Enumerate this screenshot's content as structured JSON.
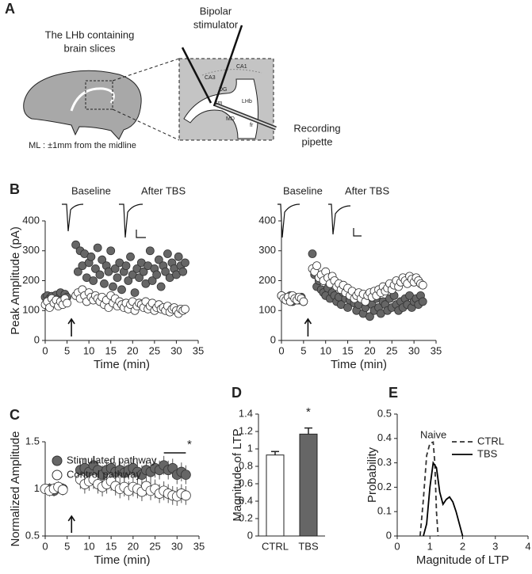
{
  "diagram": {
    "panel": "A",
    "slice_label": [
      "The LHb containing",
      "brain slices"
    ],
    "stimulator_label": [
      "Bipolar",
      "stimulator"
    ],
    "pipette_label": [
      "Recording",
      "pipette"
    ],
    "ml_note": "ML : ±1mm from the midline",
    "regions": [
      "CA3",
      "CA1",
      "DG",
      "sm",
      "LHb",
      "MD",
      "fr"
    ]
  },
  "chart_data": [
    {
      "type": "scatter",
      "panel": "B",
      "ylabel": "Peak Amplitude (pA)",
      "xlabel": "Time (min)",
      "annotations": [
        "Baseline",
        "After TBS"
      ],
      "stimulus_at": 6,
      "xlim": [
        0,
        35
      ],
      "xticks": [
        0,
        5,
        10,
        15,
        20,
        25,
        30,
        35
      ],
      "ylim": [
        0,
        400
      ],
      "yticks": [
        0,
        100,
        200,
        300,
        400
      ],
      "x": [
        0,
        0.5,
        1,
        1.5,
        2,
        2.5,
        3,
        3.5,
        4,
        4.5,
        5,
        7,
        7.5,
        8,
        8.5,
        9,
        9.5,
        10,
        10.5,
        11,
        11.5,
        12,
        12.5,
        13,
        13.5,
        14,
        14.5,
        15,
        15.5,
        16,
        16.5,
        17,
        17.5,
        18,
        18.5,
        19,
        19.5,
        20,
        20.5,
        21,
        21.5,
        22,
        22.5,
        23,
        23.5,
        24,
        24.5,
        25,
        25.5,
        26,
        26.5,
        27,
        27.5,
        28,
        28.5,
        29,
        29.5,
        30,
        30.5,
        31,
        31.5,
        32
      ],
      "series": [
        {
          "color": "#666666",
          "values": [
            145,
            150,
            140,
            148,
            135,
            152,
            140,
            160,
            130,
            155,
            145,
            320,
            230,
            300,
            250,
            290,
            210,
            260,
            280,
            200,
            240,
            310,
            220,
            270,
            190,
            250,
            230,
            300,
            180,
            240,
            210,
            260,
            170,
            230,
            250,
            200,
            280,
            220,
            160,
            240,
            210,
            260,
            230,
            190,
            250,
            300,
            200,
            240,
            220,
            270,
            180,
            250,
            230,
            290,
            210,
            260,
            240,
            220,
            280,
            250,
            230,
            260
          ]
        },
        {
          "color": "#ffffff",
          "values": [
            120,
            130,
            110,
            140,
            125,
            135,
            115,
            130,
            120,
            140,
            125,
            150,
            160,
            140,
            170,
            150,
            130,
            160,
            145,
            135,
            150,
            140,
            130,
            145,
            120,
            135,
            110,
            150,
            125,
            140,
            115,
            130,
            120,
            110,
            125,
            105,
            120,
            130,
            100,
            115,
            125,
            120,
            110,
            130,
            105,
            115,
            125,
            100,
            110,
            120,
            105,
            110,
            100,
            115,
            95,
            105,
            110,
            100,
            90,
            105,
            100,
            105
          ]
        }
      ]
    },
    {
      "type": "scatter",
      "xlabel": "Time (min)",
      "annotations": [
        "Baseline",
        "After TBS"
      ],
      "stimulus_at": 6,
      "xlim": [
        0,
        35
      ],
      "xticks": [
        0,
        5,
        10,
        15,
        20,
        25,
        30,
        35
      ],
      "ylim": [
        0,
        400
      ],
      "yticks": [
        0,
        100,
        200,
        300,
        400
      ],
      "x": [
        0,
        0.5,
        1,
        1.5,
        2,
        2.5,
        3,
        3.5,
        4,
        4.5,
        5,
        7,
        7.5,
        8,
        8.5,
        9,
        9.5,
        10,
        10.5,
        11,
        11.5,
        12,
        12.5,
        13,
        13.5,
        14,
        14.5,
        15,
        15.5,
        16,
        16.5,
        17,
        17.5,
        18,
        18.5,
        19,
        19.5,
        20,
        20.5,
        21,
        21.5,
        22,
        22.5,
        23,
        23.5,
        24,
        24.5,
        25,
        25.5,
        26,
        26.5,
        27,
        27.5,
        28,
        28.5,
        29,
        29.5,
        30,
        30.5,
        31,
        31.5,
        32
      ],
      "series": [
        {
          "color": "#666666",
          "values": [
            150,
            145,
            140,
            135,
            150,
            130,
            145,
            140,
            135,
            145,
            130,
            290,
            220,
            180,
            200,
            170,
            160,
            150,
            175,
            140,
            160,
            150,
            130,
            145,
            120,
            160,
            140,
            110,
            135,
            150,
            125,
            100,
            120,
            140,
            90,
            110,
            130,
            80,
            120,
            100,
            140,
            110,
            90,
            130,
            120,
            100,
            140,
            110,
            150,
            120,
            100,
            130,
            110,
            140,
            120,
            150,
            110,
            130,
            140,
            120,
            150,
            130
          ]
        },
        {
          "color": "#ffffff",
          "values": [
            150,
            140,
            135,
            145,
            130,
            150,
            140,
            135,
            145,
            140,
            130,
            240,
            230,
            250,
            210,
            220,
            200,
            230,
            210,
            190,
            215,
            200,
            180,
            190,
            170,
            185,
            160,
            175,
            150,
            165,
            140,
            150,
            160,
            140,
            155,
            130,
            150,
            160,
            145,
            165,
            150,
            170,
            160,
            180,
            165,
            175,
            190,
            170,
            185,
            200,
            180,
            195,
            210,
            200,
            190,
            215,
            205,
            195,
            210,
            200,
            190,
            185
          ]
        }
      ]
    },
    {
      "type": "scatter",
      "panel": "C",
      "ylabel": "Normalized Amplitude",
      "xlabel": "Time (min)",
      "annotations": [
        "*"
      ],
      "sig_range": [
        27,
        32
      ],
      "stimulus_at": 6,
      "xlim": [
        0,
        35
      ],
      "xticks": [
        0,
        5,
        10,
        15,
        20,
        25,
        30,
        35
      ],
      "ylim": [
        0.5,
        1.5
      ],
      "yticks": [
        0.5,
        1,
        1.5
      ],
      "x": [
        0,
        1,
        2,
        3,
        4,
        8,
        9,
        10,
        11,
        12,
        13,
        14,
        15,
        16,
        17,
        18,
        19,
        20,
        21,
        22,
        23,
        24,
        25,
        26,
        27,
        28,
        29,
        30,
        31,
        32
      ],
      "series": [
        {
          "name": "Stimulated pathway",
          "color": "#666666",
          "values": [
            1,
            1,
            0.98,
            1.02,
            1,
            1.2,
            1.22,
            1.18,
            1.25,
            1.2,
            1.15,
            1.2,
            1.22,
            1.18,
            1.2,
            1.17,
            1.2,
            1.22,
            1.18,
            1.15,
            1.2,
            1.18,
            1.22,
            1.2,
            1.25,
            1.2,
            1.22,
            1.15,
            1.18,
            1.15
          ],
          "errors": [
            0.06,
            0.06,
            0.06,
            0.06,
            0.06,
            0.1,
            0.1,
            0.1,
            0.1,
            0.1,
            0.1,
            0.1,
            0.1,
            0.1,
            0.1,
            0.1,
            0.1,
            0.1,
            0.1,
            0.1,
            0.1,
            0.1,
            0.1,
            0.1,
            0.1,
            0.1,
            0.1,
            0.1,
            0.1,
            0.1
          ]
        },
        {
          "name": "Control pathway",
          "color": "#ffffff",
          "values": [
            1,
            0.98,
            1,
            1.02,
            0.99,
            1.1,
            1.05,
            1.08,
            1.1,
            1.05,
            1.02,
            1.05,
            1.08,
            1.03,
            1,
            1.02,
            0.98,
            1.02,
            1,
            0.97,
            1.03,
            0.98,
            1,
            0.95,
            0.98,
            0.95,
            0.93,
            0.92,
            0.95,
            0.93
          ],
          "errors": [
            0.06,
            0.06,
            0.06,
            0.06,
            0.06,
            0.1,
            0.1,
            0.1,
            0.1,
            0.1,
            0.1,
            0.1,
            0.1,
            0.1,
            0.1,
            0.1,
            0.1,
            0.1,
            0.1,
            0.1,
            0.1,
            0.1,
            0.1,
            0.1,
            0.1,
            0.1,
            0.1,
            0.1,
            0.1,
            0.1
          ]
        }
      ]
    },
    {
      "type": "bar",
      "panel": "D",
      "ylabel": "Magnitude of LTP",
      "annotations": [
        "*"
      ],
      "categories": [
        "CTRL",
        "TBS"
      ],
      "values": [
        0.93,
        1.17
      ],
      "errors": [
        0.04,
        0.07
      ],
      "colors": [
        "#ffffff",
        "#666666"
      ],
      "ylim": [
        0,
        1.4
      ],
      "yticks": [
        0,
        0.2,
        0.4,
        0.6,
        0.8,
        1,
        1.2,
        1.4
      ]
    },
    {
      "type": "line",
      "panel": "E",
      "ylabel": "Probability",
      "xlabel": "Magnitude of LTP",
      "annotations": [
        "Naive"
      ],
      "xlim": [
        0,
        4
      ],
      "xticks": [
        0,
        1,
        2,
        3,
        4
      ],
      "ylim": [
        0,
        0.5
      ],
      "yticks": [
        0,
        0.1,
        0.2,
        0.3,
        0.4,
        0.5
      ],
      "series": [
        {
          "name": "CTRL",
          "color": "#333333",
          "dash": true,
          "x": [
            0.7,
            0.8,
            0.9,
            1.0,
            1.1,
            1.15,
            1.2,
            1.25
          ],
          "values": [
            0,
            0.15,
            0.33,
            0.38,
            0.385,
            0.3,
            0.1,
            0
          ]
        },
        {
          "name": "TBS",
          "color": "#000000",
          "dash": false,
          "x": [
            0.8,
            0.9,
            1.0,
            1.1,
            1.2,
            1.3,
            1.4,
            1.5,
            1.6,
            1.7,
            1.8,
            1.9,
            2.0
          ],
          "values": [
            0,
            0.05,
            0.2,
            0.3,
            0.28,
            0.18,
            0.13,
            0.15,
            0.16,
            0.14,
            0.1,
            0.05,
            0
          ]
        }
      ]
    }
  ]
}
